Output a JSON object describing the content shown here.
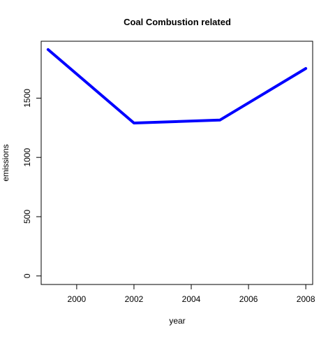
{
  "chart_data": {
    "type": "line",
    "title": "Coal Combustion related",
    "xlabel": "year",
    "ylabel": "emissions",
    "x": [
      1999,
      2002,
      2005,
      2008
    ],
    "series": [
      {
        "values": [
          1910,
          1290,
          1315,
          1750
        ],
        "color": "#0000ff"
      }
    ],
    "xticks": [
      2000,
      2002,
      2004,
      2006,
      2008
    ],
    "xtick_labels": [
      "2000",
      "2002",
      "2004",
      "2006",
      "2008"
    ],
    "yticks": [
      0,
      500,
      1000,
      1500
    ],
    "ytick_labels": [
      "0",
      "500",
      "1000",
      "1500"
    ],
    "xlim": [
      1998.76,
      2008.24
    ],
    "ylim": [
      -72,
      1980
    ],
    "grid": false,
    "legend": "none",
    "colors": {
      "line": "#0000ff",
      "axis": "#000000",
      "background": "#ffffff"
    }
  }
}
